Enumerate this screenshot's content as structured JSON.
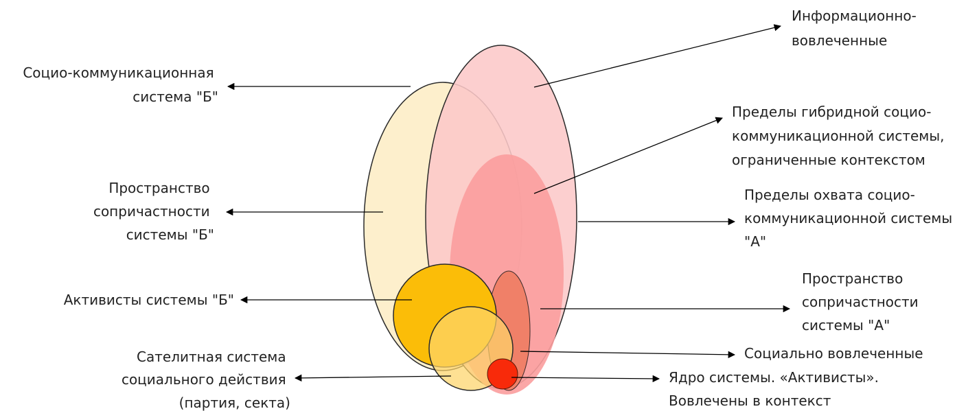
{
  "labels": {
    "socio_comm_b": [
      "Социо-коммуникационная",
      "система \"Б\""
    ],
    "space_b": [
      "Пространство",
      "сопричастности",
      "системы \"Б\""
    ],
    "activists_b": [
      "Активисты системы \"Б\""
    ],
    "satellite": [
      "Сателитная система",
      "социального действия",
      "(партия, секта)"
    ],
    "info_involved": [
      "Информационно-",
      "вовлеченные"
    ],
    "hybrid_limits": [
      "Пределы гибридной социо-",
      "коммуникационной системы,",
      "ограниченные контекстом"
    ],
    "coverage_a": [
      "Пределы охвата социо-",
      "коммуникационной системы",
      "\"А\""
    ],
    "space_a": [
      "Пространство",
      "сопричастности",
      "системы \"А\""
    ],
    "social_involved": [
      "Социально вовлеченные"
    ],
    "core": [
      "Ядро системы. «Активисты».",
      "Вовлечены в контекст"
    ]
  },
  "colors": {
    "system_b_fill": "#fdefcc",
    "system_a_fill": "#fcc8c8",
    "hybrid_fill": "#fb9d9d",
    "activists_a_fill": "#f08068",
    "activists_b_fill": "#fbbd08",
    "satellite_fill": "#fdd46a",
    "core_fill": "#f82a0a"
  }
}
